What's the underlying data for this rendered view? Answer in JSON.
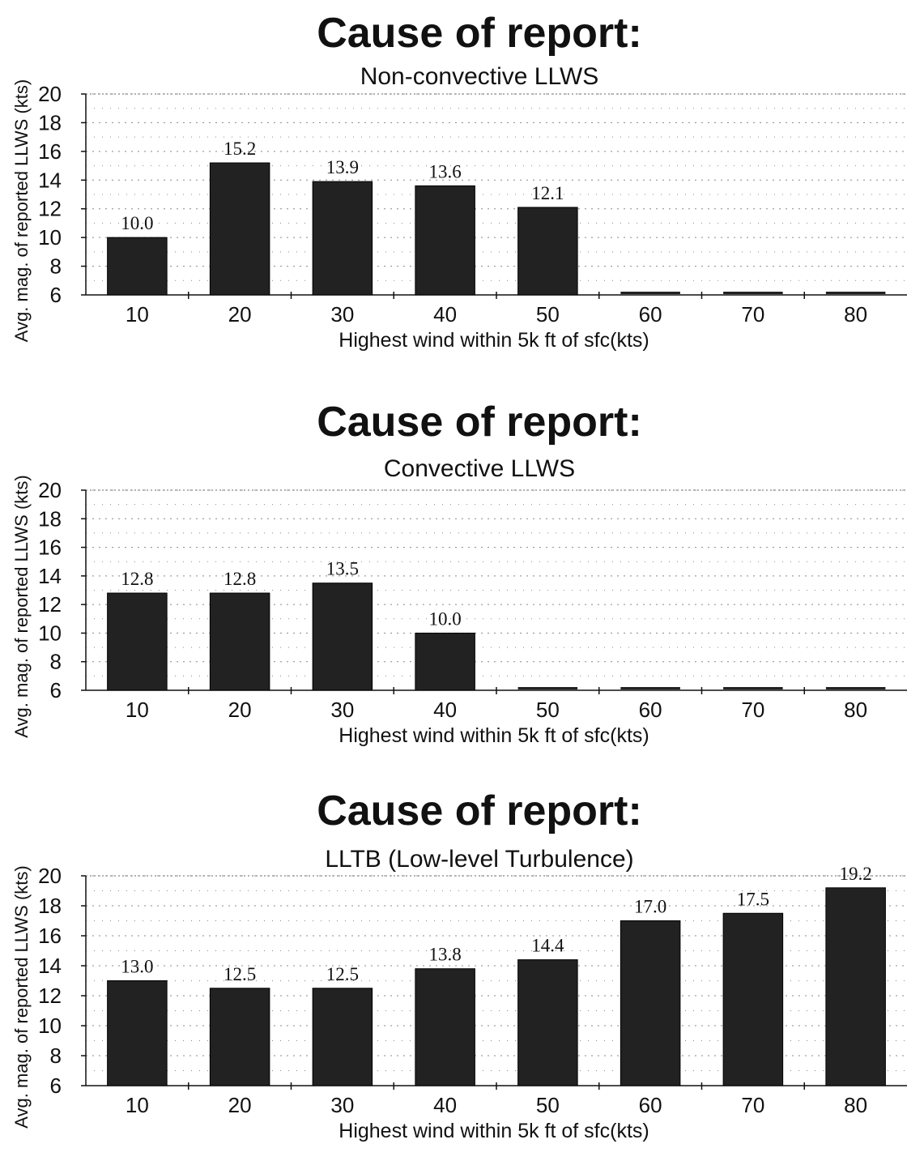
{
  "chart_data": [
    {
      "type": "bar",
      "title": "Cause of report:",
      "subtitle": "Non-convective LLWS",
      "xlabel": "Highest wind within 5k ft of sfc(kts)",
      "ylabel": "Avg. mag. of reported LLWS (kts)",
      "categories": [
        "10",
        "20",
        "30",
        "40",
        "50",
        "60",
        "70",
        "80"
      ],
      "values": [
        10.0,
        15.2,
        13.9,
        13.6,
        12.1,
        null,
        null,
        null
      ],
      "data_labels": [
        "10.0",
        "15.2",
        "13.9",
        "13.6",
        "12.1",
        "",
        "",
        ""
      ],
      "yticks": [
        "6",
        "8",
        "10",
        "12",
        "14",
        "16",
        "18",
        "20"
      ],
      "ylim": [
        6,
        20
      ],
      "grid": true,
      "bar_color": "#222222"
    },
    {
      "type": "bar",
      "title": "Cause of report:",
      "subtitle": "Convective LLWS",
      "xlabel": "Highest wind within 5k ft of sfc(kts)",
      "ylabel": "Avg. mag. of reported LLWS (kts)",
      "categories": [
        "10",
        "20",
        "30",
        "40",
        "50",
        "60",
        "70",
        "80"
      ],
      "values": [
        12.8,
        12.8,
        13.5,
        10.0,
        null,
        null,
        null,
        null
      ],
      "data_labels": [
        "12.8",
        "12.8",
        "13.5",
        "10.0",
        "",
        "",
        "",
        ""
      ],
      "yticks": [
        "6",
        "8",
        "10",
        "12",
        "14",
        "16",
        "18",
        "20"
      ],
      "ylim": [
        6,
        20
      ],
      "grid": true,
      "bar_color": "#222222"
    },
    {
      "type": "bar",
      "title": "Cause of report:",
      "subtitle": "LLTB (Low-level Turbulence)",
      "xlabel": "Highest wind within 5k ft of sfc(kts)",
      "ylabel": "Avg. mag. of reported LLWS (kts)",
      "categories": [
        "10",
        "20",
        "30",
        "40",
        "50",
        "60",
        "70",
        "80"
      ],
      "values": [
        13.0,
        12.5,
        12.5,
        13.8,
        14.4,
        17.0,
        17.5,
        19.2
      ],
      "data_labels": [
        "13.0",
        "12.5",
        "12.5",
        "13.8",
        "14.4",
        "17.0",
        "17.5",
        "19.2"
      ],
      "yticks": [
        "6",
        "8",
        "10",
        "12",
        "14",
        "16",
        "18",
        "20"
      ],
      "ylim": [
        6,
        20
      ],
      "grid": true,
      "bar_color": "#222222"
    }
  ]
}
